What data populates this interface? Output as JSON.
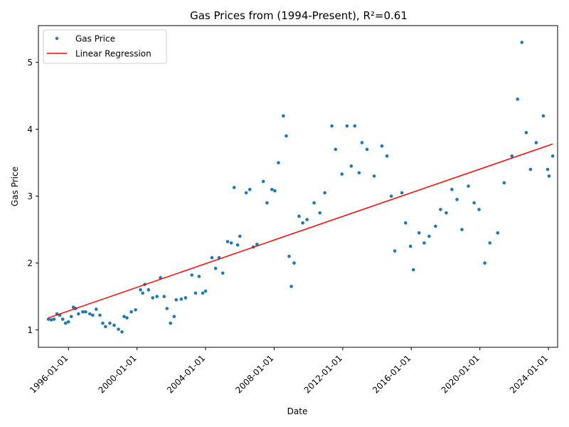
{
  "chart_data": {
    "type": "scatter",
    "title": "Gas Prices from (1994-Present), R²=0.61",
    "xlabel": "Date",
    "ylabel": "Gas Price",
    "xlim": [
      "1994-04-01",
      "2024-07-15"
    ],
    "ylim": [
      0.74,
      5.55
    ],
    "x_ticks": [
      "1996-01-01",
      "2000-01-01",
      "2004-01-01",
      "2008-01-01",
      "2012-01-01",
      "2016-01-01",
      "2020-01-01",
      "2024-01-01"
    ],
    "y_ticks": [
      1,
      2,
      3,
      4,
      5
    ],
    "grid": false,
    "legend": {
      "position": "top-left"
    },
    "series": [
      {
        "name": "Gas Price",
        "kind": "scatter",
        "color": "#1f77b4",
        "points": [
          [
            "1994-11-01",
            1.16
          ],
          [
            "1995-01-01",
            1.15
          ],
          [
            "1995-03-01",
            1.16
          ],
          [
            "1995-05-01",
            1.24
          ],
          [
            "1995-07-01",
            1.22
          ],
          [
            "1995-09-01",
            1.16
          ],
          [
            "1995-11-01",
            1.1
          ],
          [
            "1996-01-01",
            1.12
          ],
          [
            "1996-03-01",
            1.2
          ],
          [
            "1996-04-15",
            1.34
          ],
          [
            "1996-06-01",
            1.32
          ],
          [
            "1996-08-01",
            1.24
          ],
          [
            "1996-11-01",
            1.27
          ],
          [
            "1997-01-01",
            1.27
          ],
          [
            "1997-04-01",
            1.24
          ],
          [
            "1997-06-01",
            1.22
          ],
          [
            "1997-08-15",
            1.31
          ],
          [
            "1997-11-01",
            1.22
          ],
          [
            "1998-01-01",
            1.1
          ],
          [
            "1998-03-01",
            1.05
          ],
          [
            "1998-06-01",
            1.1
          ],
          [
            "1998-09-01",
            1.07
          ],
          [
            "1998-12-01",
            1.01
          ],
          [
            "1999-02-15",
            0.97
          ],
          [
            "1999-04-01",
            1.2
          ],
          [
            "1999-06-01",
            1.18
          ],
          [
            "1999-09-01",
            1.27
          ],
          [
            "1999-12-01",
            1.3
          ],
          [
            "2000-03-15",
            1.6
          ],
          [
            "2000-05-01",
            1.55
          ],
          [
            "2000-06-15",
            1.68
          ],
          [
            "2000-09-01",
            1.6
          ],
          [
            "2000-12-01",
            1.48
          ],
          [
            "2001-03-01",
            1.5
          ],
          [
            "2001-05-15",
            1.78
          ],
          [
            "2001-08-01",
            1.5
          ],
          [
            "2001-10-01",
            1.32
          ],
          [
            "2001-12-15",
            1.1
          ],
          [
            "2002-03-01",
            1.2
          ],
          [
            "2002-04-15",
            1.45
          ],
          [
            "2002-08-01",
            1.46
          ],
          [
            "2002-11-01",
            1.48
          ],
          [
            "2003-03-15",
            1.82
          ],
          [
            "2003-06-01",
            1.55
          ],
          [
            "2003-08-15",
            1.8
          ],
          [
            "2003-11-01",
            1.55
          ],
          [
            "2004-01-01",
            1.58
          ],
          [
            "2004-05-15",
            2.08
          ],
          [
            "2004-08-01",
            1.92
          ],
          [
            "2004-10-15",
            2.08
          ],
          [
            "2005-01-01",
            1.85
          ],
          [
            "2005-04-15",
            2.32
          ],
          [
            "2005-07-01",
            2.3
          ],
          [
            "2005-09-01",
            3.13
          ],
          [
            "2005-11-15",
            2.27
          ],
          [
            "2006-01-01",
            2.4
          ],
          [
            "2006-05-15",
            3.05
          ],
          [
            "2006-08-01",
            3.1
          ],
          [
            "2006-10-15",
            2.24
          ],
          [
            "2007-01-01",
            2.28
          ],
          [
            "2007-05-15",
            3.22
          ],
          [
            "2007-08-01",
            2.9
          ],
          [
            "2007-11-15",
            3.1
          ],
          [
            "2008-01-15",
            3.08
          ],
          [
            "2008-04-01",
            3.5
          ],
          [
            "2008-07-15",
            4.2
          ],
          [
            "2008-09-15",
            3.9
          ],
          [
            "2008-11-15",
            2.1
          ],
          [
            "2009-01-01",
            1.65
          ],
          [
            "2009-03-01",
            2.0
          ],
          [
            "2009-06-15",
            2.7
          ],
          [
            "2009-09-01",
            2.6
          ],
          [
            "2009-12-01",
            2.65
          ],
          [
            "2010-05-01",
            2.9
          ],
          [
            "2010-09-01",
            2.75
          ],
          [
            "2010-12-15",
            3.05
          ],
          [
            "2011-05-15",
            4.05
          ],
          [
            "2011-08-01",
            3.7
          ],
          [
            "2011-12-15",
            3.33
          ],
          [
            "2012-04-01",
            4.05
          ],
          [
            "2012-07-01",
            3.45
          ],
          [
            "2012-09-15",
            4.05
          ],
          [
            "2012-12-15",
            3.35
          ],
          [
            "2013-02-15",
            3.8
          ],
          [
            "2013-06-01",
            3.7
          ],
          [
            "2013-11-01",
            3.3
          ],
          [
            "2014-04-15",
            3.75
          ],
          [
            "2014-08-01",
            3.6
          ],
          [
            "2014-11-01",
            3.0
          ],
          [
            "2015-01-15",
            2.18
          ],
          [
            "2015-06-15",
            3.05
          ],
          [
            "2015-09-01",
            2.6
          ],
          [
            "2015-12-15",
            2.25
          ],
          [
            "2016-02-15",
            1.9
          ],
          [
            "2016-06-15",
            2.45
          ],
          [
            "2016-10-01",
            2.3
          ],
          [
            "2017-01-15",
            2.4
          ],
          [
            "2017-06-01",
            2.55
          ],
          [
            "2017-09-15",
            2.8
          ],
          [
            "2018-01-15",
            2.75
          ],
          [
            "2018-05-15",
            3.1
          ],
          [
            "2018-09-01",
            2.95
          ],
          [
            "2018-12-15",
            2.5
          ],
          [
            "2019-05-01",
            3.15
          ],
          [
            "2019-09-01",
            2.9
          ],
          [
            "2019-12-15",
            2.8
          ],
          [
            "2020-04-15",
            2.0
          ],
          [
            "2020-08-01",
            2.3
          ],
          [
            "2021-01-15",
            2.45
          ],
          [
            "2021-06-01",
            3.2
          ],
          [
            "2021-11-15",
            3.6
          ],
          [
            "2022-03-15",
            4.45
          ],
          [
            "2022-06-15",
            5.3
          ],
          [
            "2022-09-15",
            3.95
          ],
          [
            "2022-12-15",
            3.4
          ],
          [
            "2023-04-15",
            3.8
          ],
          [
            "2023-09-15",
            4.2
          ],
          [
            "2023-12-15",
            3.4
          ],
          [
            "2024-01-15",
            3.3
          ],
          [
            "2024-04-01",
            3.6
          ]
        ]
      },
      {
        "name": "Linear Regression",
        "kind": "line",
        "color": "#ff0000",
        "points": [
          [
            "1994-11-01",
            1.18
          ],
          [
            "2024-04-01",
            3.78
          ]
        ]
      }
    ]
  }
}
